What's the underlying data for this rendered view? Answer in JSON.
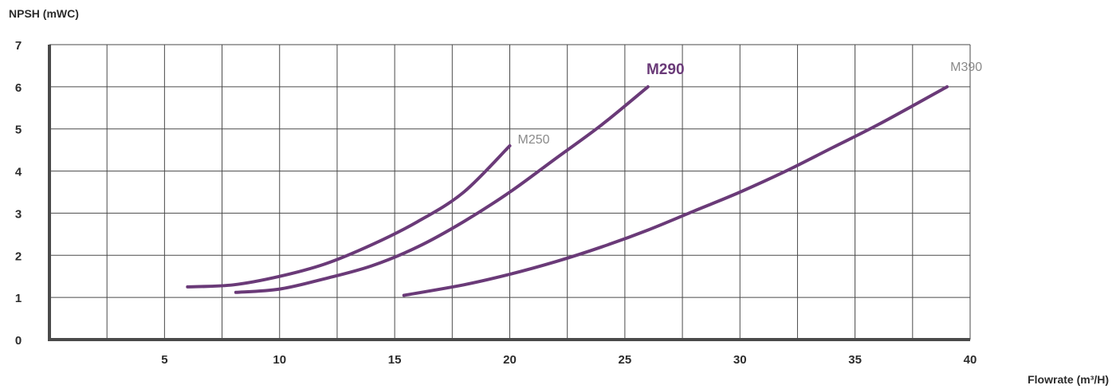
{
  "colors": {
    "curve": "#6a3a78",
    "highlight": "#6a3a78",
    "grid": "#4a4a4a",
    "text": "#2b2b2b",
    "label": "#8a8a8a"
  },
  "chart_data": {
    "type": "line",
    "xlabel": "Flowrate (m³/H)",
    "ylabel": "NPSH (mWC)",
    "xlim": [
      0,
      40
    ],
    "ylim": [
      0,
      7
    ],
    "x_ticks": [
      5,
      10,
      15,
      20,
      25,
      30,
      35,
      40
    ],
    "y_ticks": [
      0,
      1,
      2,
      3,
      4,
      5,
      6,
      7
    ],
    "grid_x_step": 2.5,
    "grid": true,
    "series": [
      {
        "name": "M250",
        "highlight": false,
        "points": [
          [
            6,
            1.25
          ],
          [
            8,
            1.3
          ],
          [
            10,
            1.5
          ],
          [
            12,
            1.8
          ],
          [
            14,
            2.25
          ],
          [
            16,
            2.8
          ],
          [
            18,
            3.5
          ],
          [
            20,
            4.6
          ]
        ]
      },
      {
        "name": "M290",
        "highlight": true,
        "points": [
          [
            8.1,
            1.12
          ],
          [
            10,
            1.2
          ],
          [
            12,
            1.45
          ],
          [
            14,
            1.75
          ],
          [
            16,
            2.2
          ],
          [
            18,
            2.8
          ],
          [
            20,
            3.5
          ],
          [
            22,
            4.3
          ],
          [
            24,
            5.1
          ],
          [
            26,
            6.0
          ]
        ]
      },
      {
        "name": "M390",
        "highlight": false,
        "points": [
          [
            15.4,
            1.05
          ],
          [
            18,
            1.3
          ],
          [
            20,
            1.55
          ],
          [
            22,
            1.85
          ],
          [
            24,
            2.2
          ],
          [
            26,
            2.6
          ],
          [
            28,
            3.05
          ],
          [
            30,
            3.5
          ],
          [
            32,
            4.0
          ],
          [
            34,
            4.55
          ],
          [
            36,
            5.1
          ],
          [
            39,
            6.0
          ]
        ]
      }
    ]
  }
}
